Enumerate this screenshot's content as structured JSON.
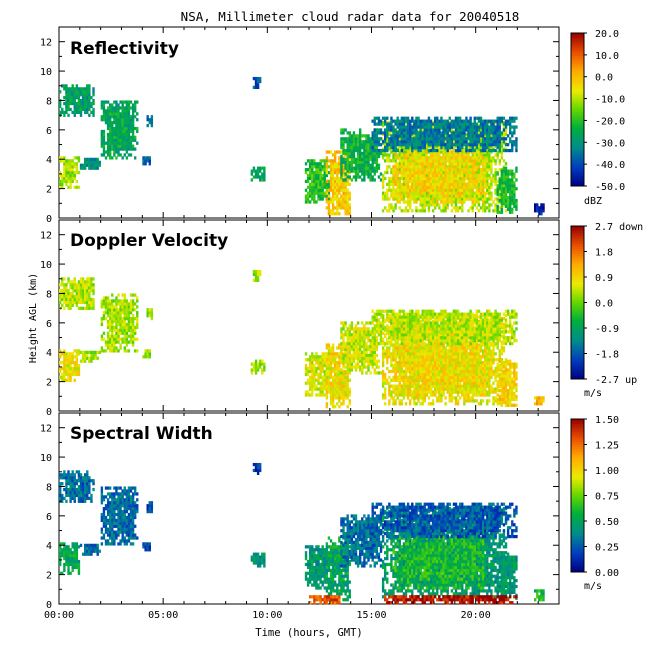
{
  "title": "NSA, Millimeter cloud radar data for 20040518",
  "xlabel": "Time (hours, GMT)",
  "ylabel": "Height AGL (km)",
  "chart_data": [
    {
      "type": "heatmap",
      "title": "Reflectivity",
      "xlim": [
        0,
        24
      ],
      "ylim": [
        0,
        13
      ],
      "x_ticks": [
        "00:00",
        "05:00",
        "10:00",
        "15:00",
        "20:00"
      ],
      "y_ticks": [
        "0",
        "2",
        "4",
        "6",
        "8",
        "10",
        "12"
      ],
      "colorbar": {
        "labels": [
          "20.0",
          "10.0",
          "0.0",
          "-10.0",
          "-20.0",
          "-30.0",
          "-40.0",
          "-50.0"
        ],
        "unit": "dBZ",
        "range": [
          -50,
          20
        ]
      },
      "echo_regions": [
        {
          "t": [
            0.0,
            1.7
          ],
          "h": [
            6.9,
            9.0
          ],
          "value": -28
        },
        {
          "t": [
            0.0,
            1.0
          ],
          "h": [
            2.0,
            4.2
          ],
          "value": -12
        },
        {
          "t": [
            1.0,
            2.0
          ],
          "h": [
            3.3,
            4.1
          ],
          "value": -30
        },
        {
          "t": [
            2.0,
            3.8
          ],
          "h": [
            4.0,
            8.0
          ],
          "value": -26
        },
        {
          "t": [
            4.0,
            4.4
          ],
          "h": [
            3.6,
            4.2
          ],
          "value": -38
        },
        {
          "t": [
            4.2,
            4.5
          ],
          "h": [
            6.2,
            7.0
          ],
          "value": -36
        },
        {
          "t": [
            9.3,
            9.7
          ],
          "h": [
            8.8,
            9.5
          ],
          "value": -40
        },
        {
          "t": [
            9.2,
            9.9
          ],
          "h": [
            2.5,
            3.5
          ],
          "value": -26
        },
        {
          "t": [
            11.8,
            13.0
          ],
          "h": [
            1.0,
            4.0
          ],
          "value": -20
        },
        {
          "t": [
            12.8,
            14.0
          ],
          "h": [
            0.2,
            4.5
          ],
          "value": -2
        },
        {
          "t": [
            13.5,
            15.5
          ],
          "h": [
            2.5,
            6.0
          ],
          "value": -24
        },
        {
          "t": [
            15.5,
            21.5
          ],
          "h": [
            0.4,
            6.5
          ],
          "value": -10
        },
        {
          "t": [
            16.0,
            20.5
          ],
          "h": [
            1.0,
            4.5
          ],
          "value": -4
        },
        {
          "t": [
            15.0,
            22.0
          ],
          "h": [
            4.5,
            6.9
          ],
          "value": -34
        },
        {
          "t": [
            21.0,
            22.0
          ],
          "h": [
            0.3,
            3.5
          ],
          "value": -22
        },
        {
          "t": [
            22.8,
            23.3
          ],
          "h": [
            0.2,
            1.0
          ],
          "value": -46
        }
      ]
    },
    {
      "type": "heatmap",
      "title": "Doppler Velocity",
      "xlim": [
        0,
        24
      ],
      "ylim": [
        0,
        13
      ],
      "x_ticks": [
        "00:00",
        "05:00",
        "10:00",
        "15:00",
        "20:00"
      ],
      "y_ticks": [
        "0",
        "2",
        "4",
        "6",
        "8",
        "10",
        "12"
      ],
      "colorbar": {
        "labels": [
          "2.7 down",
          "1.8",
          "0.9",
          "0.0",
          "-0.9",
          "-1.8",
          "-2.7 up"
        ],
        "unit": "m/s",
        "range": [
          -2.7,
          2.7
        ]
      },
      "echo_regions": [
        {
          "t": [
            0.0,
            1.7
          ],
          "h": [
            6.9,
            9.0
          ],
          "value": 0.4
        },
        {
          "t": [
            0.0,
            1.0
          ],
          "h": [
            2.0,
            4.2
          ],
          "value": 0.7
        },
        {
          "t": [
            1.0,
            2.0
          ],
          "h": [
            3.3,
            4.1
          ],
          "value": 0.3
        },
        {
          "t": [
            2.0,
            3.8
          ],
          "h": [
            4.0,
            8.0
          ],
          "value": 0.3
        },
        {
          "t": [
            4.0,
            4.4
          ],
          "h": [
            3.6,
            4.2
          ],
          "value": 0.2
        },
        {
          "t": [
            4.2,
            4.5
          ],
          "h": [
            6.2,
            7.0
          ],
          "value": 0.2
        },
        {
          "t": [
            9.3,
            9.7
          ],
          "h": [
            8.8,
            9.5
          ],
          "value": 0.3
        },
        {
          "t": [
            9.2,
            9.9
          ],
          "h": [
            2.5,
            3.5
          ],
          "value": 0.3
        },
        {
          "t": [
            11.8,
            13.0
          ],
          "h": [
            1.0,
            4.0
          ],
          "value": 0.6
        },
        {
          "t": [
            12.8,
            14.0
          ],
          "h": [
            0.2,
            4.5
          ],
          "value": 0.8
        },
        {
          "t": [
            13.5,
            15.5
          ],
          "h": [
            2.5,
            6.0
          ],
          "value": 0.5
        },
        {
          "t": [
            15.5,
            21.5
          ],
          "h": [
            0.4,
            6.5
          ],
          "value": 0.7
        },
        {
          "t": [
            16.0,
            20.5
          ],
          "h": [
            1.0,
            4.5
          ],
          "value": 0.8
        },
        {
          "t": [
            15.0,
            22.0
          ],
          "h": [
            4.5,
            6.9
          ],
          "value": 0.4
        },
        {
          "t": [
            21.0,
            22.0
          ],
          "h": [
            0.3,
            3.5
          ],
          "value": 0.9
        },
        {
          "t": [
            22.8,
            23.3
          ],
          "h": [
            0.2,
            1.0
          ],
          "value": 1.2
        }
      ]
    },
    {
      "type": "heatmap",
      "title": "Spectral Width",
      "xlim": [
        0,
        24
      ],
      "ylim": [
        0,
        13
      ],
      "x_ticks": [
        "00:00",
        "05:00",
        "10:00",
        "15:00",
        "20:00"
      ],
      "y_ticks": [
        "0",
        "2",
        "4",
        "6",
        "8",
        "10",
        "12"
      ],
      "colorbar": {
        "labels": [
          "1.50",
          "1.25",
          "1.00",
          "0.75",
          "0.50",
          "0.25",
          "0.00"
        ],
        "unit": "m/s",
        "range": [
          0,
          1.5
        ]
      },
      "echo_regions": [
        {
          "t": [
            0.0,
            1.7
          ],
          "h": [
            6.9,
            9.0
          ],
          "value": 0.3
        },
        {
          "t": [
            0.0,
            1.0
          ],
          "h": [
            2.0,
            4.2
          ],
          "value": 0.5
        },
        {
          "t": [
            1.0,
            2.0
          ],
          "h": [
            3.3,
            4.1
          ],
          "value": 0.3
        },
        {
          "t": [
            2.0,
            3.8
          ],
          "h": [
            4.0,
            8.0
          ],
          "value": 0.3
        },
        {
          "t": [
            4.0,
            4.4
          ],
          "h": [
            3.6,
            4.2
          ],
          "value": 0.2
        },
        {
          "t": [
            4.2,
            4.5
          ],
          "h": [
            6.2,
            7.0
          ],
          "value": 0.2
        },
        {
          "t": [
            9.3,
            9.7
          ],
          "h": [
            8.8,
            9.5
          ],
          "value": 0.15
        },
        {
          "t": [
            9.2,
            9.9
          ],
          "h": [
            2.5,
            3.5
          ],
          "value": 0.45
        },
        {
          "t": [
            11.8,
            13.0
          ],
          "h": [
            1.0,
            4.0
          ],
          "value": 0.45
        },
        {
          "t": [
            12.8,
            14.0
          ],
          "h": [
            0.2,
            4.5
          ],
          "value": 0.5
        },
        {
          "t": [
            13.5,
            15.5
          ],
          "h": [
            2.5,
            6.0
          ],
          "value": 0.3
        },
        {
          "t": [
            15.5,
            21.5
          ],
          "h": [
            0.4,
            6.5
          ],
          "value": 0.45
        },
        {
          "t": [
            16.0,
            20.5
          ],
          "h": [
            1.0,
            4.5
          ],
          "value": 0.6
        },
        {
          "t": [
            15.0,
            22.0
          ],
          "h": [
            4.5,
            6.9
          ],
          "value": 0.25
        },
        {
          "t": [
            21.0,
            22.0
          ],
          "h": [
            0.3,
            3.5
          ],
          "value": 0.45
        },
        {
          "t": [
            22.8,
            23.3
          ],
          "h": [
            0.2,
            1.0
          ],
          "value": 0.6
        },
        {
          "t": [
            12.0,
            13.5
          ],
          "h": [
            0.0,
            0.5
          ],
          "value": 1.3
        },
        {
          "t": [
            15.5,
            22.0
          ],
          "h": [
            0.0,
            0.5
          ],
          "value": 1.45
        }
      ]
    }
  ]
}
